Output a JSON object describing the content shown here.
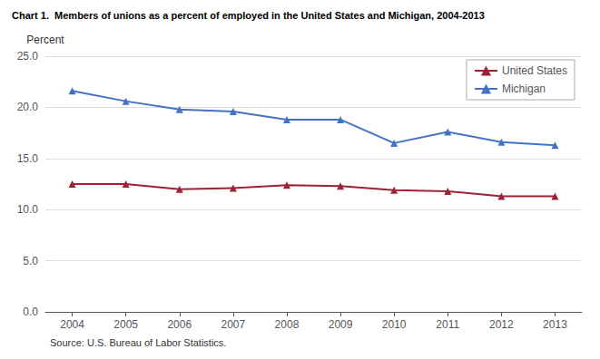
{
  "chart_data": {
    "type": "line",
    "title": "Chart 1.  Members of unions as a percent of employed in the United States and Michigan, 2004-2013",
    "ylabel": "Percent",
    "annotations": [
      "Source: U.S. Bureau of Labor Statistics."
    ],
    "x": [
      2004,
      2005,
      2006,
      2007,
      2008,
      2009,
      2010,
      2011,
      2012,
      2013
    ],
    "xlim": [
      2003.5,
      2013.5
    ],
    "xticks": [
      2004,
      2005,
      2006,
      2007,
      2008,
      2009,
      2010,
      2011,
      2012,
      2013
    ],
    "ylim": [
      0,
      25
    ],
    "yticks": [
      {
        "value": 0,
        "label": "0.0"
      },
      {
        "value": 5,
        "label": "5.0"
      },
      {
        "value": 10,
        "label": "10.0"
      },
      {
        "value": 15,
        "label": "15.0"
      },
      {
        "value": 20,
        "label": "20.0"
      },
      {
        "value": 25,
        "label": "25.0"
      }
    ],
    "grid": true,
    "legend": "upper right",
    "marker": "triangle",
    "series": [
      {
        "name": "United States",
        "color": "#9B2335",
        "values": [
          12.5,
          12.5,
          12.0,
          12.1,
          12.4,
          12.3,
          11.9,
          11.8,
          11.3,
          11.3
        ]
      },
      {
        "name": "Michigan",
        "color": "#4472C4",
        "values": [
          21.6,
          20.6,
          19.8,
          19.6,
          18.8,
          18.8,
          16.5,
          17.6,
          16.6,
          16.3
        ]
      }
    ]
  }
}
